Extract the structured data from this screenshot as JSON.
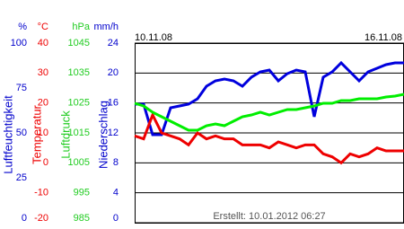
{
  "chart_data": {
    "type": "line",
    "start_date": "10.11.08",
    "end_date": "16.11.08",
    "footer": "Erstellt: 10.01.2012 06:27",
    "grid": true,
    "axes": [
      {
        "unit": "%",
        "label": "Luftfeuchtigkeit",
        "color": "#0000cc",
        "ylim": [
          0,
          100
        ],
        "yticks": [
          0,
          25,
          50,
          75,
          100
        ]
      },
      {
        "unit": "°C",
        "label": "Temperatur",
        "color": "#ee0000",
        "ylim": [
          -20,
          40
        ],
        "yticks": [
          -20,
          -10,
          0,
          10,
          20,
          30,
          40
        ]
      },
      {
        "unit": "hPa",
        "label": "Luftdruck",
        "color": "#22cc22",
        "ylim": [
          985,
          1045
        ],
        "yticks": [
          985,
          995,
          1005,
          1015,
          1025,
          1035,
          1045
        ]
      },
      {
        "unit": "mm/h",
        "label": "Niederschlag",
        "color": "#0000cc",
        "ylim": [
          0,
          24
        ],
        "yticks": [
          0,
          4,
          8,
          12,
          16,
          20,
          24
        ]
      }
    ],
    "series": [
      {
        "axis": 0,
        "color": "#0000dd",
        "values": [
          66,
          66,
          49,
          49,
          64,
          65,
          66,
          69,
          76,
          79,
          80,
          79,
          76,
          81,
          84,
          85,
          79,
          83,
          85,
          84,
          59,
          81,
          84,
          89,
          84,
          79,
          84,
          86,
          88,
          89,
          89
        ]
      },
      {
        "axis": 1,
        "color": "#ee0000",
        "values": [
          9,
          8,
          16,
          10,
          9,
          8,
          6,
          10,
          8,
          9,
          8,
          8,
          6,
          6,
          6,
          5,
          7,
          6,
          5,
          6,
          6,
          3,
          2,
          0,
          3,
          2,
          3,
          5,
          4,
          4,
          4
        ]
      },
      {
        "axis": 2,
        "color": "#00ee00",
        "values": [
          1024.9,
          1024,
          1021.9,
          1020.4,
          1018.9,
          1017.4,
          1015.9,
          1015.9,
          1017.4,
          1018,
          1017.4,
          1018.9,
          1020.4,
          1021,
          1021.9,
          1021,
          1021.9,
          1022.8,
          1022.8,
          1023.4,
          1024,
          1024.9,
          1024.9,
          1025.8,
          1025.8,
          1026.4,
          1026.4,
          1026.4,
          1027,
          1027.3,
          1027.9
        ]
      }
    ]
  }
}
